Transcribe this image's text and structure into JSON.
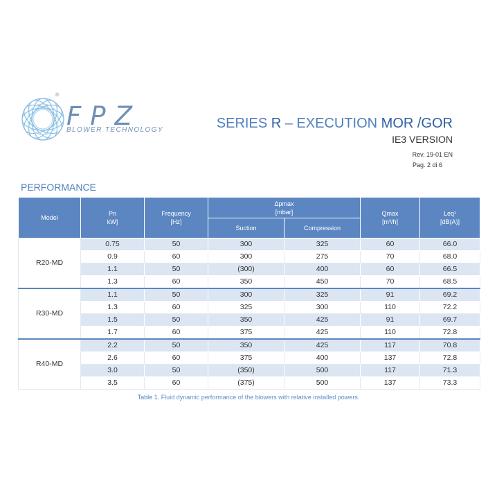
{
  "header": {
    "brand": "FPZ",
    "registered": "®",
    "tagline": "BLOWER TECHNOLOGY",
    "series_prefix": "SERIES ",
    "series_bold": "R",
    "series_mid": " – EXECUTION ",
    "series_exec": "MOR /GOR",
    "version": "IE3 VERSION",
    "revision": "Rev. 19-01  EN",
    "page": "Pag. 2 di 6"
  },
  "section_title": "PERFORMANCE",
  "table": {
    "headers": {
      "model": "Model",
      "pn": "Pn",
      "pn_unit": "kW]",
      "frequency": "Frequency",
      "frequency_unit": "[Hz]",
      "dp": "Δpmax",
      "dp_unit": "[mbar]",
      "suction": "Suction",
      "compression": "Compression",
      "q": "Qmax",
      "q_unit": "[m³/h]",
      "leq": "Leq¹",
      "leq_unit": "[dB(A)]"
    },
    "groups": [
      {
        "model": "R20-MD",
        "rows": [
          [
            "0.75",
            "50",
            "300",
            "325",
            "60",
            "66.0"
          ],
          [
            "0.9",
            "60",
            "300",
            "275",
            "70",
            "68.0"
          ],
          [
            "1.1",
            "50",
            "(300)",
            "400",
            "60",
            "66.5"
          ],
          [
            "1.3",
            "60",
            "350",
            "450",
            "70",
            "68.5"
          ]
        ]
      },
      {
        "model": "R30-MD",
        "rows": [
          [
            "1.1",
            "50",
            "300",
            "325",
            "91",
            "69.2"
          ],
          [
            "1.3",
            "60",
            "325",
            "300",
            "110",
            "72.2"
          ],
          [
            "1.5",
            "50",
            "350",
            "425",
            "91",
            "69.7"
          ],
          [
            "1.7",
            "60",
            "375",
            "425",
            "110",
            "72.8"
          ]
        ]
      },
      {
        "model": "R40-MD",
        "rows": [
          [
            "2.2",
            "50",
            "350",
            "425",
            "117",
            "70.8"
          ],
          [
            "2.6",
            "60",
            "375",
            "400",
            "137",
            "72.8"
          ],
          [
            "3.0",
            "50",
            "(350)",
            "500",
            "117",
            "71.3"
          ],
          [
            "3.5",
            "60",
            "(375)",
            "500",
            "137",
            "73.3"
          ]
        ]
      }
    ]
  },
  "caption": {
    "label": "Table 1.",
    "text": " Fluid dynamic performance of the blowers with relative installed powers."
  },
  "colors": {
    "accent": "#4f7fbd",
    "header_bg": "#5b86c2",
    "row_alt": "#dce5f2"
  },
  "icons": {
    "logo": "fpz-spiral-logo-icon"
  }
}
